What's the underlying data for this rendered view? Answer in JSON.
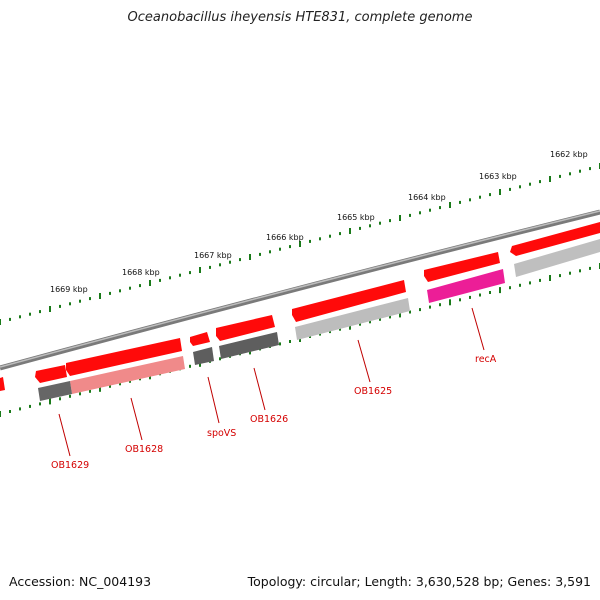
{
  "header": {
    "title": "Oceanobacillus iheyensis HTE831, complete genome"
  },
  "footer": {
    "accession": "Accession: NC_004193",
    "summary": "Topology: circular; Length: 3,630,528 bp; Genes: 3,591"
  },
  "scale_labels": [
    "1662 kbp",
    "1663 kbp",
    "1664 kbp",
    "1665 kbp",
    "1666 kbp",
    "1667 kbp",
    "1668 kbp",
    "1669 kbp"
  ],
  "gene_labels": [
    "recA",
    "OB1625",
    "OB1626",
    "spoVS",
    "OB1628",
    "OB1629"
  ],
  "colors": {
    "backbone": "#888888",
    "forward_gene": "#ff0000",
    "reverse_gene": "#ff1a1a",
    "cds_dark": "#5a5a5a",
    "cds_light": "#b8b8b8",
    "cds_pink": "#f08080",
    "reca_cds": "#e8189a",
    "tick": "#1a7a1a",
    "label": "#d40000"
  }
}
